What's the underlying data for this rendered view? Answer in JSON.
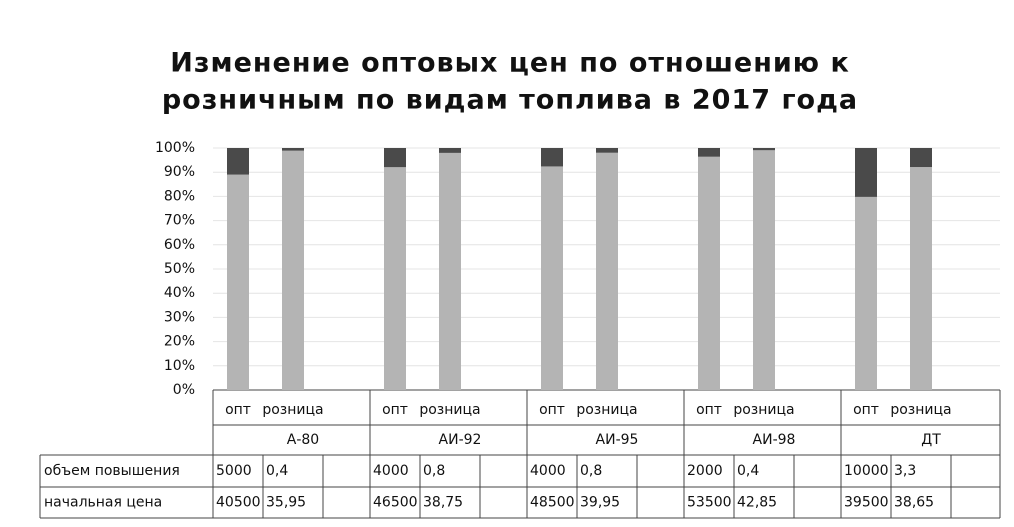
{
  "chart_data": {
    "type": "stacked_bar_100",
    "title": [
      "Изменение оптовых цен по отношению к",
      "розничным по видам топлива в 2017 года"
    ],
    "categories": [
      "опт",
      "розница",
      "опт",
      "розница",
      "опт",
      "розница",
      "опт",
      "розница",
      "опт",
      "розница"
    ],
    "groups": [
      "А-80",
      "АИ-92",
      "АИ-95",
      "АИ-98",
      "ДТ"
    ],
    "series": [
      {
        "name": "объем повышения",
        "color": "#4a4a4a",
        "values": [
          5000,
          0.4,
          4000,
          0.8,
          4000,
          0.8,
          2000,
          0.4,
          10000,
          3.3
        ],
        "value_labels": [
          "5000",
          "0,4",
          "4000",
          "0,8",
          "4000",
          "0,8",
          "2000",
          "0,4",
          "10000",
          "3,3"
        ]
      },
      {
        "name": "начальная цена",
        "color": "#b4b4b4",
        "values": [
          40500,
          35.95,
          46500,
          38.75,
          48500,
          39.95,
          53500,
          42.85,
          39500,
          38.65
        ],
        "value_labels": [
          "40500",
          "35,95",
          "46500",
          "38,75",
          "48500",
          "39,95",
          "53500",
          "42,85",
          "39500",
          "38,65"
        ]
      }
    ],
    "ylim": [
      0,
      100
    ],
    "yticks": [
      {
        "value": 0,
        "label": "0%"
      },
      {
        "value": 10,
        "label": "10%"
      },
      {
        "value": 20,
        "label": "20%"
      },
      {
        "value": 30,
        "label": "30%"
      },
      {
        "value": 40,
        "label": "40%"
      },
      {
        "value": 50,
        "label": "50%"
      },
      {
        "value": 60,
        "label": "60%"
      },
      {
        "value": 70,
        "label": "70%"
      },
      {
        "value": 80,
        "label": "80%"
      },
      {
        "value": 90,
        "label": "90%"
      },
      {
        "value": 100,
        "label": "100%"
      }
    ],
    "grid": true
  }
}
